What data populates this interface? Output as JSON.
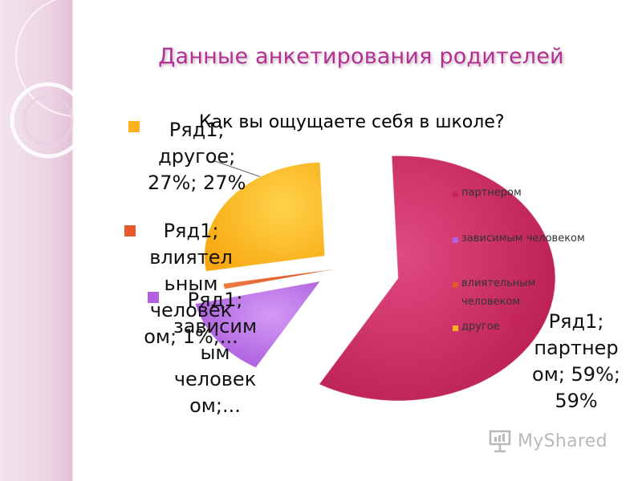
{
  "slide": {
    "title": "Данные анкетирования родителей"
  },
  "colors": {
    "partner": "#c8245c",
    "dependent": "#b160e0",
    "influential": "#e8572a",
    "other": "#ffb020",
    "title": "#b2308f"
  },
  "chart_data": {
    "type": "pie",
    "title": "Как вы ощущаете себя в школе?",
    "series_name": "Ряд1",
    "categories": [
      "партнером",
      "зависимым человеком",
      "влиятельным человеком",
      "другое"
    ],
    "values": [
      59,
      13,
      1,
      27
    ],
    "value_format": "percent",
    "exploded": true,
    "legend_position": "right",
    "legend": [
      "партнером",
      "зависимым человеком",
      "влиятельным человеком",
      "другое"
    ],
    "data_labels": {
      "partner": [
        "Ряд1;",
        "партнер",
        "ом; 59%;",
        "59%"
      ],
      "other": [
        "Ряд1;",
        "другое;",
        "27%; 27%"
      ],
      "influential": [
        "Ряд1;",
        "влиятел",
        "ьным",
        "человек",
        "ом; 1%;..."
      ],
      "dependent": [
        "Ряд1;",
        "зависим",
        "ым",
        "человек",
        "ом;..."
      ]
    }
  },
  "watermark": {
    "text": "MyShared"
  }
}
